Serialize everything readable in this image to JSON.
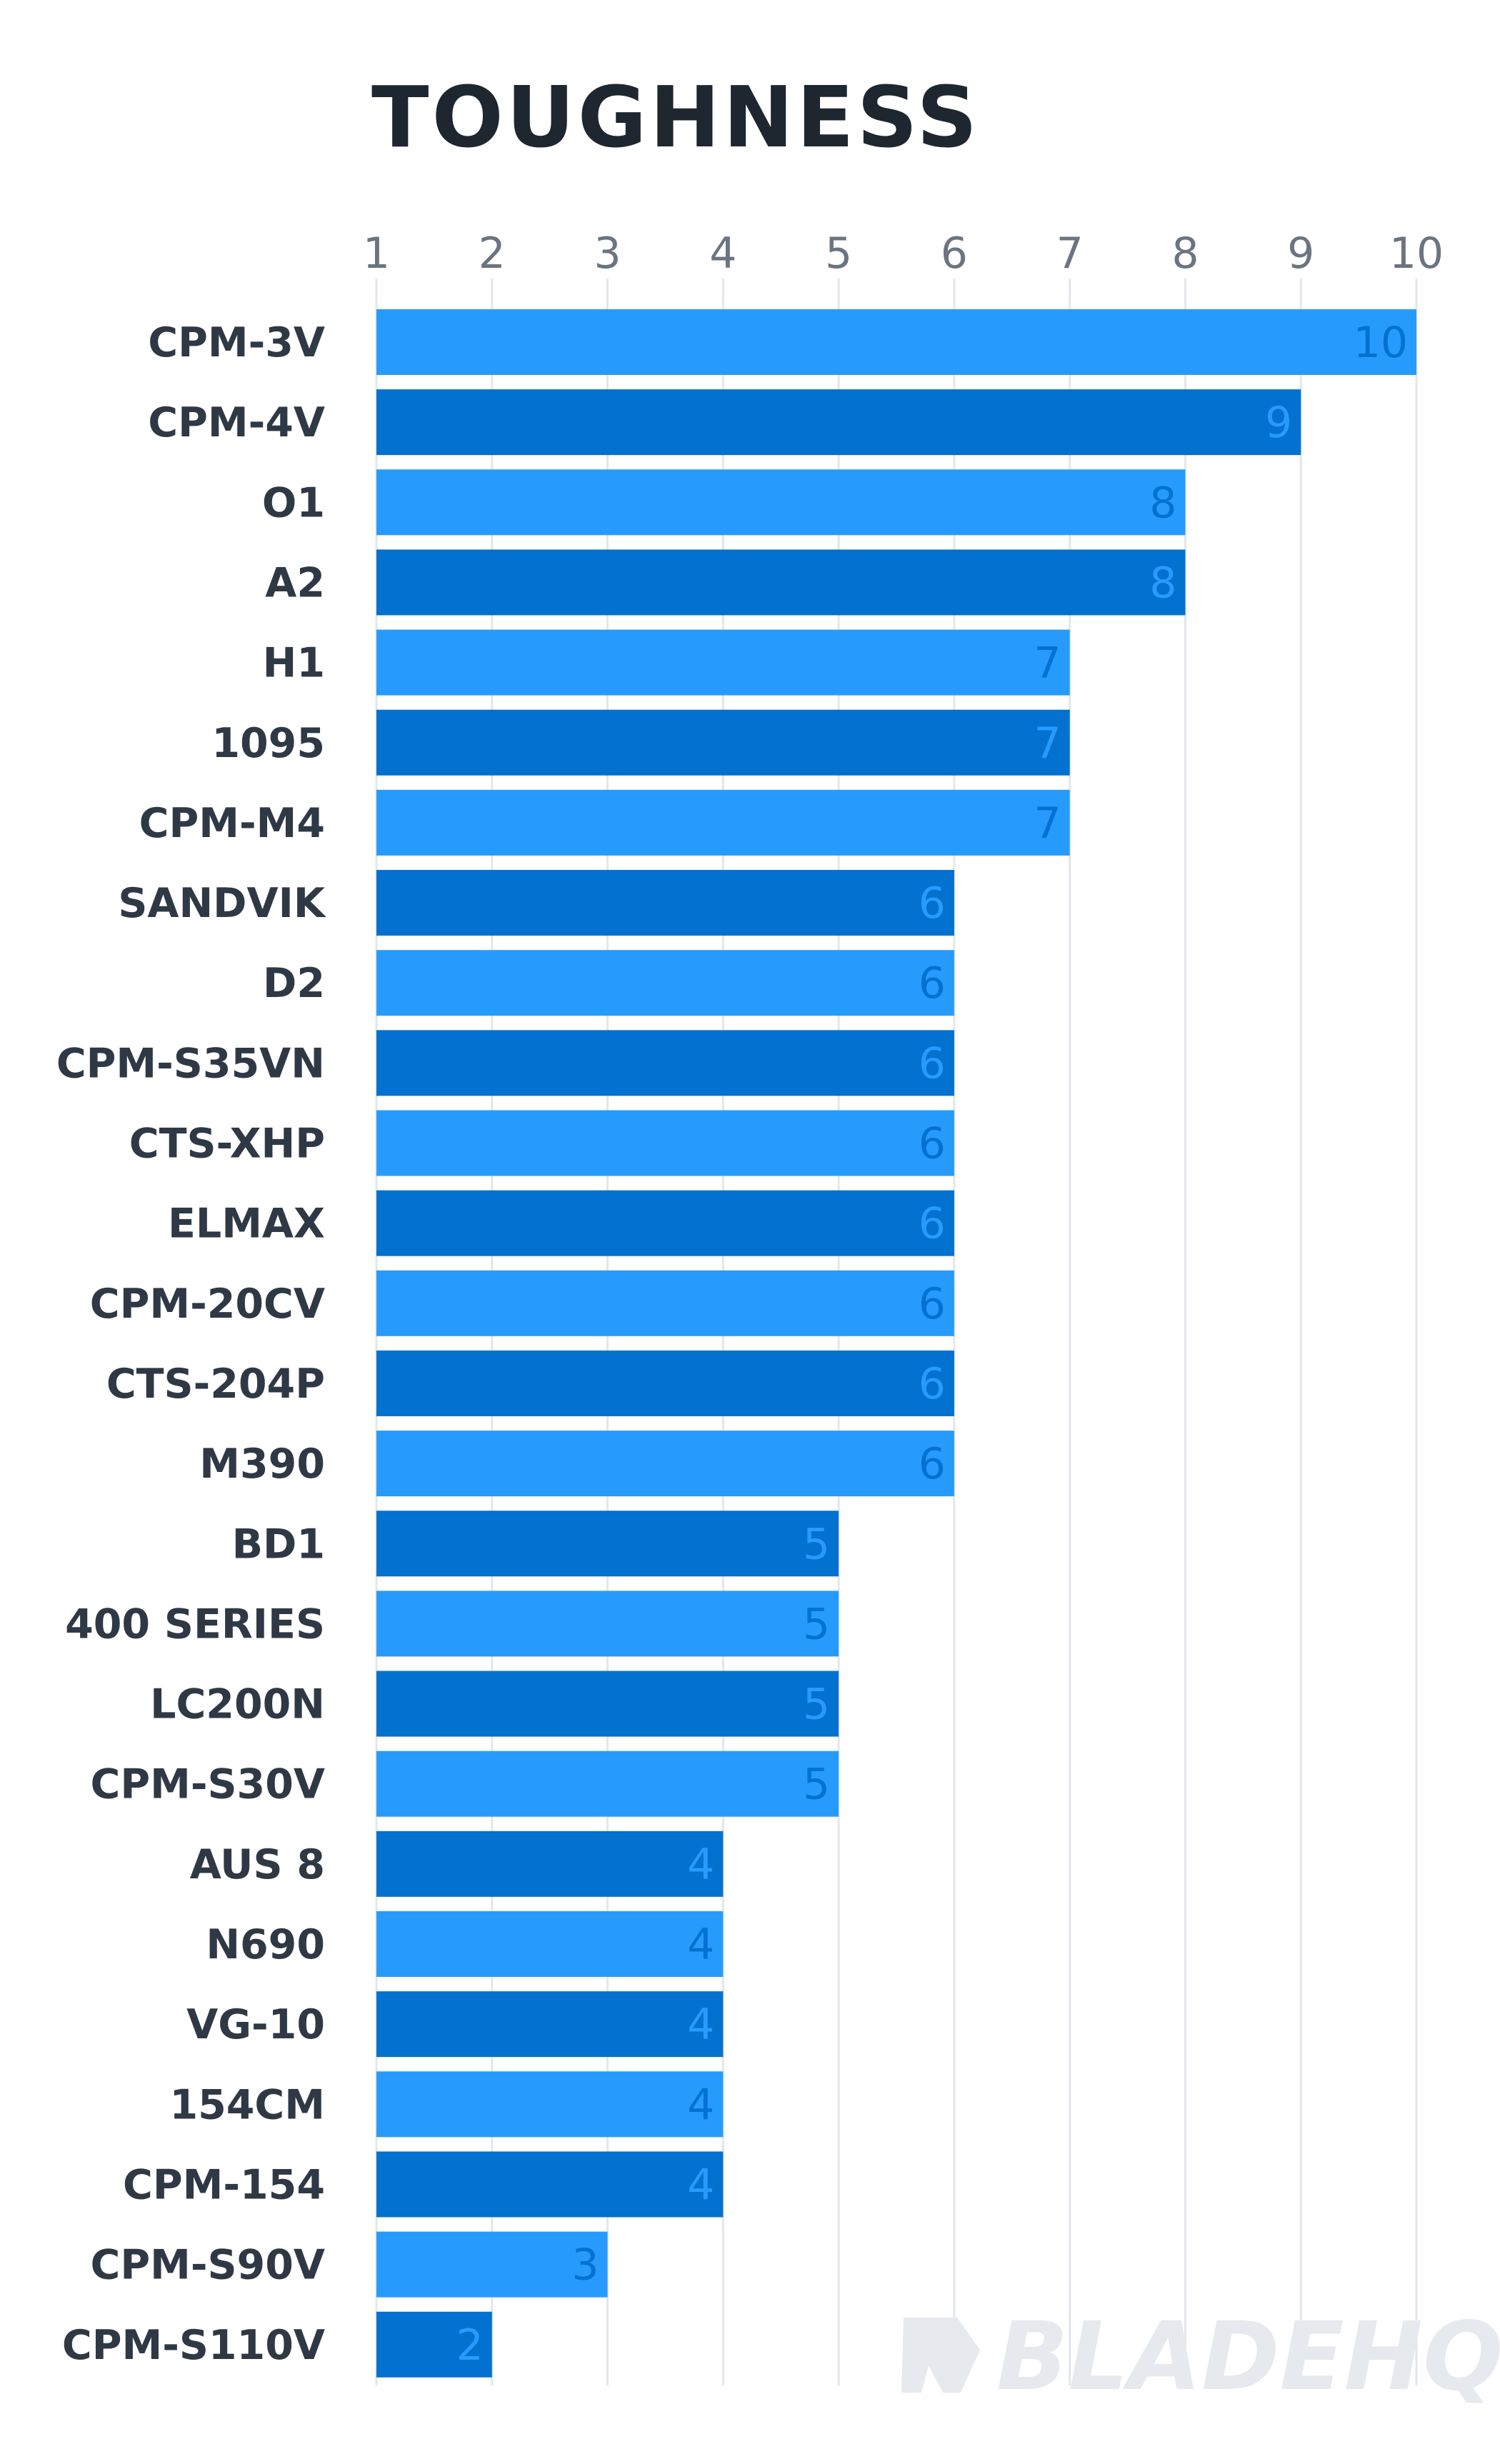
{
  "chart_data": {
    "type": "bar",
    "orientation": "horizontal",
    "title": "TOUGHNESS",
    "xlim": [
      1,
      10
    ],
    "x_ticks": [
      "1",
      "2",
      "3",
      "4",
      "5",
      "6",
      "7",
      "8",
      "9",
      "10"
    ],
    "grid": true,
    "categories": [
      "CPM-3V",
      "CPM-4V",
      "O1",
      "A2",
      "H1",
      "1095",
      "CPM-M4",
      "SANDVIK",
      "D2",
      "CPM-S35VN",
      "CTS-XHP",
      "ELMAX",
      "CPM-20CV",
      "CTS-204P",
      "M390",
      "BD1",
      "400 SERIES",
      "LC200N",
      "CPM-S30V",
      "AUS 8",
      "N690",
      "VG-10",
      "154CM",
      "CPM-154",
      "CPM-S90V",
      "CPM-S110V"
    ],
    "values": [
      10,
      9,
      8,
      8,
      7,
      7,
      7,
      6,
      6,
      6,
      6,
      6,
      6,
      6,
      6,
      5,
      5,
      5,
      5,
      4,
      4,
      4,
      4,
      4,
      3,
      2
    ],
    "value_labels": [
      "10",
      "9",
      "8",
      "8",
      "7",
      "7",
      "7",
      "6",
      "6",
      "6",
      "6",
      "6",
      "6",
      "6",
      "6",
      "5",
      "5",
      "5",
      "5",
      "4",
      "4",
      "4",
      "4",
      "4",
      "3",
      "2"
    ]
  },
  "colors": {
    "bar_light": "#279bfd",
    "bar_dark": "#0271cf",
    "grid": "#e3e6ea"
  },
  "watermark": {
    "text": "BLADEHQ",
    "icon": "bladehq-logo-icon"
  }
}
